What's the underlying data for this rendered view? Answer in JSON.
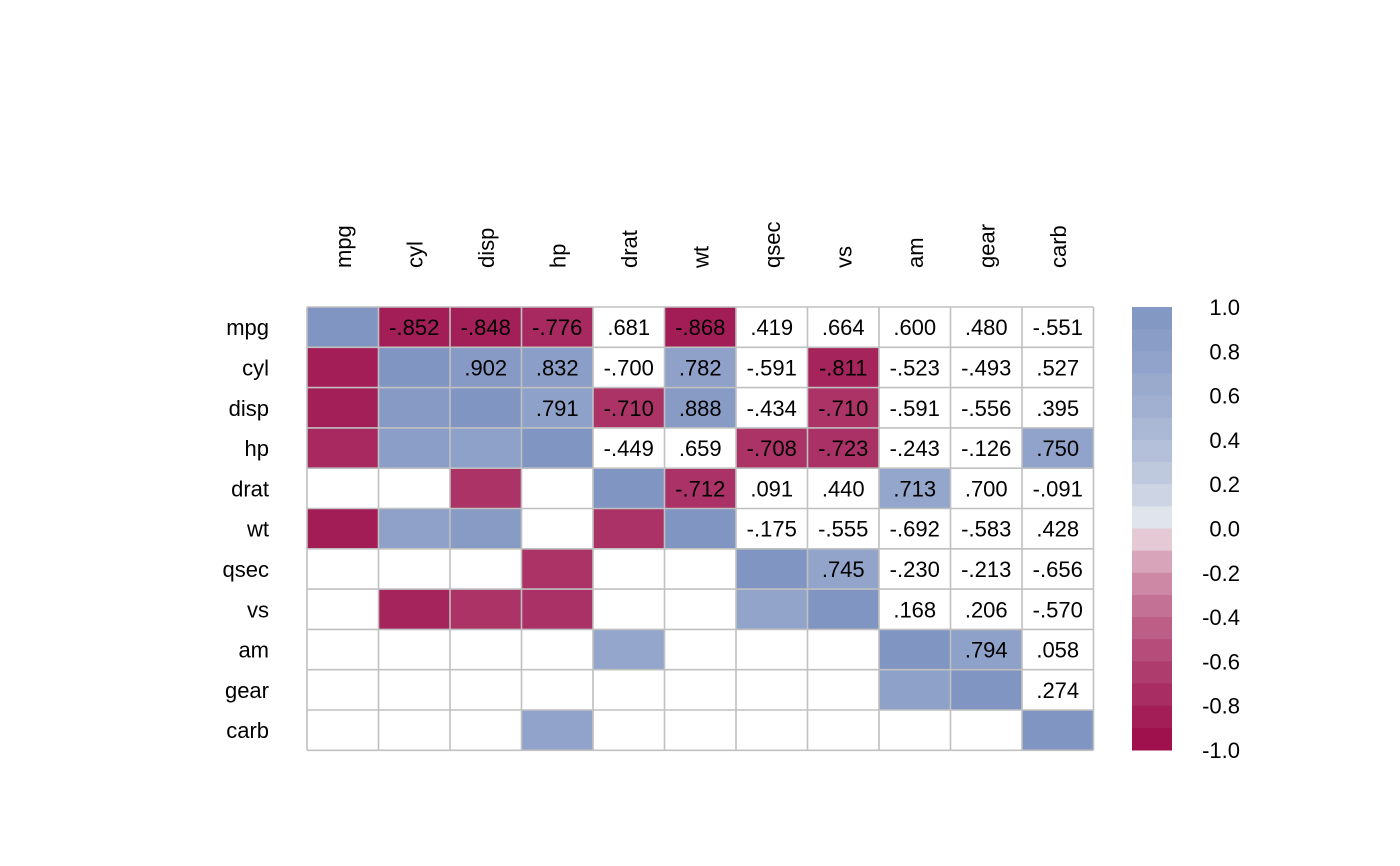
{
  "chart_data": {
    "type": "heatmap",
    "variables": [
      "mpg",
      "cyl",
      "disp",
      "hp",
      "drat",
      "wt",
      "qsec",
      "vs",
      "am",
      "gear",
      "carb"
    ],
    "matrix": [
      [
        1.0,
        -0.852,
        -0.848,
        -0.776,
        0.681,
        -0.868,
        0.419,
        0.664,
        0.6,
        0.48,
        -0.551
      ],
      [
        -0.852,
        1.0,
        0.902,
        0.832,
        -0.7,
        0.782,
        -0.591,
        -0.811,
        -0.523,
        -0.493,
        0.527
      ],
      [
        -0.848,
        0.902,
        1.0,
        0.791,
        -0.71,
        0.888,
        -0.434,
        -0.71,
        -0.591,
        -0.556,
        0.395
      ],
      [
        -0.776,
        0.832,
        0.791,
        1.0,
        -0.449,
        0.659,
        -0.708,
        -0.723,
        -0.243,
        -0.126,
        0.75
      ],
      [
        0.681,
        -0.7,
        -0.71,
        -0.449,
        1.0,
        -0.712,
        0.091,
        0.44,
        0.713,
        0.7,
        -0.091
      ],
      [
        -0.868,
        0.782,
        0.888,
        0.659,
        -0.712,
        1.0,
        -0.175,
        -0.555,
        -0.692,
        -0.583,
        0.428
      ],
      [
        0.419,
        -0.591,
        -0.434,
        -0.708,
        0.091,
        -0.175,
        1.0,
        0.745,
        -0.23,
        -0.213,
        -0.656
      ],
      [
        0.664,
        -0.811,
        -0.71,
        -0.723,
        0.44,
        -0.555,
        0.745,
        1.0,
        0.168,
        0.206,
        -0.57
      ],
      [
        0.6,
        -0.523,
        -0.591,
        -0.243,
        0.713,
        -0.692,
        -0.23,
        0.168,
        1.0,
        0.794,
        0.058
      ],
      [
        0.48,
        -0.493,
        -0.556,
        -0.126,
        0.7,
        -0.583,
        -0.213,
        0.206,
        0.794,
        1.0,
        0.274
      ],
      [
        -0.551,
        0.527,
        0.395,
        0.75,
        -0.091,
        0.428,
        -0.656,
        -0.57,
        0.058,
        0.274,
        1.0
      ]
    ],
    "upper_triangle": "printed coefficients, cell filled only when |r| > 0.7",
    "lower_triangle": "colored fill only when p < 0.05 (no text)",
    "diagonal": "colored fill, no text",
    "color_scale": {
      "min": -1.0,
      "max": 1.0,
      "negative_color": "#9b0a48",
      "neutral_color": "#f7f7f7",
      "positive_color": "#8095c2"
    },
    "legend": {
      "ticks": [
        "1.0",
        "0.8",
        "0.6",
        "0.4",
        "0.2",
        "0.0",
        "-0.2",
        "-0.4",
        "-0.6",
        "-0.8",
        "-1.0"
      ],
      "tick_values": [
        1.0,
        0.8,
        0.6,
        0.4,
        0.2,
        0.0,
        -0.2,
        -0.4,
        -0.6,
        -0.8,
        -1.0
      ],
      "steps": 20,
      "placement": "right"
    },
    "grid_color": "#c0c0c0"
  }
}
